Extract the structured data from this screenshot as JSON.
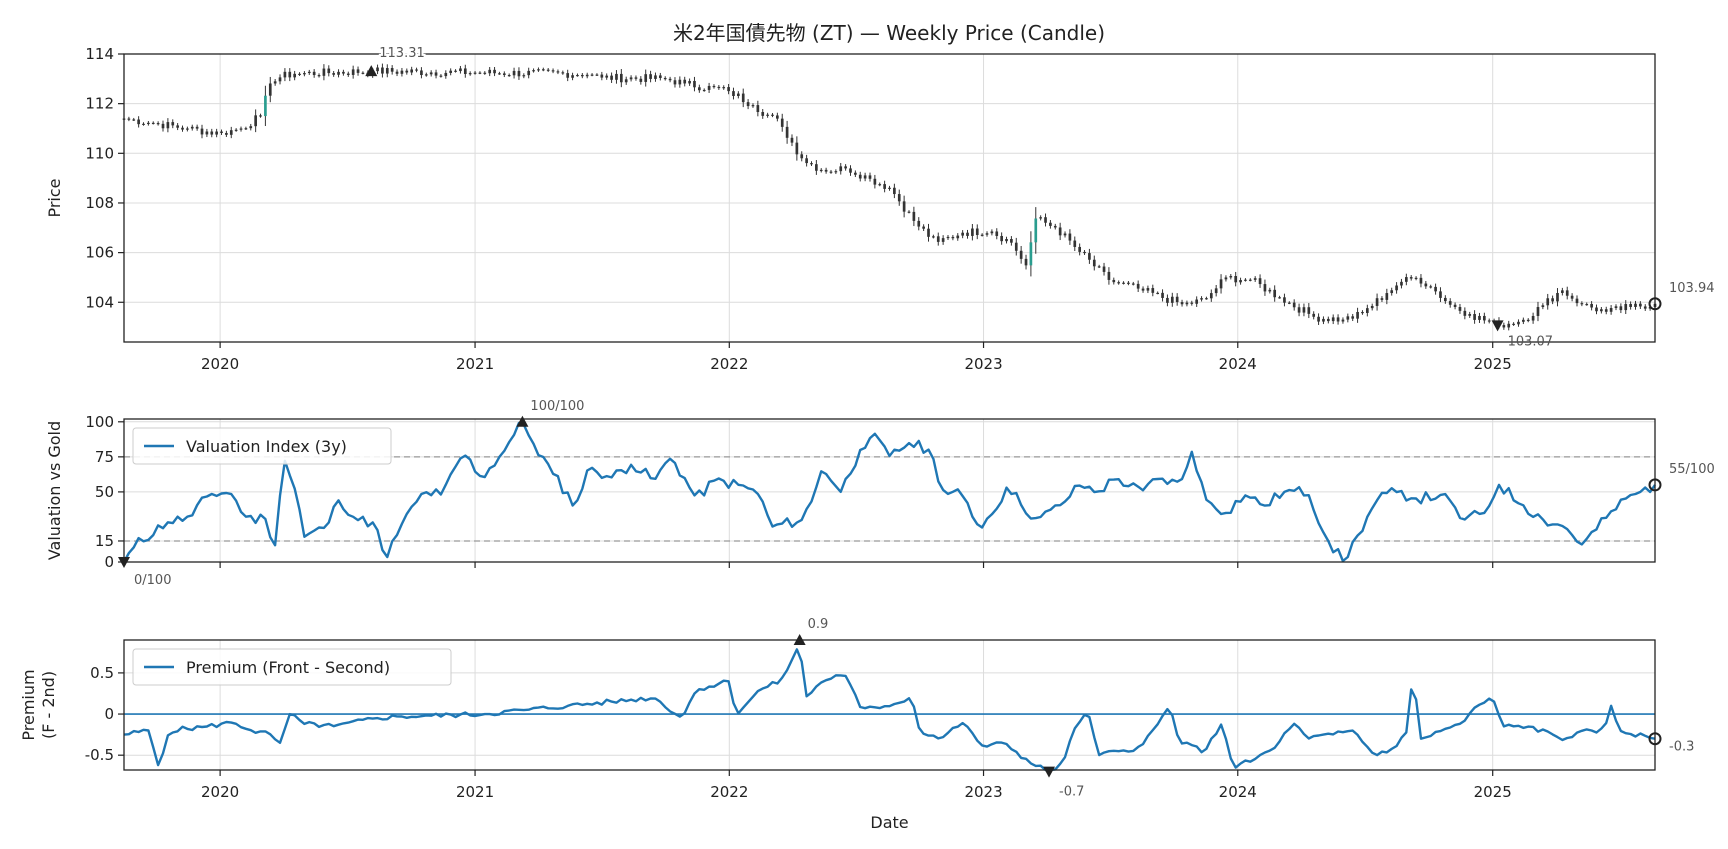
{
  "title": "米2年国債先物 (ZT) — Weekly Price (Candle)",
  "colors": {
    "up": "#2a9d8f",
    "down": "#c0392b",
    "body": "#333333",
    "line": "#1f77b4",
    "marker": "#222222",
    "grid": "#dcdcdc",
    "dash": "#999999"
  },
  "chart_data": [
    {
      "type": "candlestick",
      "ylabel": "Price",
      "ylim": [
        102.4,
        114.0
      ],
      "yticks": [
        104,
        106,
        108,
        110,
        112,
        114
      ],
      "xrange": [
        "2019-08-16",
        "2025-08-22"
      ],
      "xtick_labels": [
        "2020",
        "2021",
        "2022",
        "2023",
        "2024",
        "2025"
      ],
      "grid": true,
      "anchors": [
        [
          "2019-08-16",
          111.4
        ],
        [
          "2019-10-01",
          111.2
        ],
        [
          "2019-11-15",
          111.0
        ],
        [
          "2019-12-31",
          110.8
        ],
        [
          "2020-01-31",
          111.0
        ],
        [
          "2020-02-28",
          111.5
        ],
        [
          "2020-03-15",
          113.0
        ],
        [
          "2020-04-15",
          113.2
        ],
        [
          "2020-08-05",
          113.31
        ],
        [
          "2021-01-01",
          113.25
        ],
        [
          "2021-06-15",
          113.2
        ],
        [
          "2021-07-01",
          113.05
        ],
        [
          "2021-10-01",
          113.0
        ],
        [
          "2021-10-31",
          112.8
        ],
        [
          "2022-01-01",
          112.5
        ],
        [
          "2022-02-01",
          112.0
        ],
        [
          "2022-03-15",
          111.2
        ],
        [
          "2022-04-15",
          109.8
        ],
        [
          "2022-05-15",
          109.3
        ],
        [
          "2022-06-20",
          109.4
        ],
        [
          "2022-07-20",
          109.0
        ],
        [
          "2022-08-20",
          108.6
        ],
        [
          "2022-09-25",
          107.2
        ],
        [
          "2022-10-25",
          106.4
        ],
        [
          "2022-12-01",
          106.8
        ],
        [
          "2023-01-10",
          106.9
        ],
        [
          "2023-02-10",
          106.4
        ],
        [
          "2023-03-05",
          105.4
        ],
        [
          "2023-03-15",
          107.4
        ],
        [
          "2023-04-15",
          107.0
        ],
        [
          "2023-05-20",
          106.0
        ],
        [
          "2023-06-30",
          104.9
        ],
        [
          "2023-08-15",
          104.5
        ],
        [
          "2023-10-15",
          103.9
        ],
        [
          "2023-11-15",
          104.1
        ],
        [
          "2023-12-15",
          105.0
        ],
        [
          "2024-01-20",
          104.9
        ],
        [
          "2024-03-01",
          104.2
        ],
        [
          "2024-04-20",
          103.4
        ],
        [
          "2024-06-01",
          103.3
        ],
        [
          "2024-06-25",
          103.5
        ],
        [
          "2024-07-30",
          104.3
        ],
        [
          "2024-08-20",
          104.8
        ],
        [
          "2024-09-15",
          105.0
        ],
        [
          "2024-10-05",
          104.6
        ],
        [
          "2024-11-01",
          103.9
        ],
        [
          "2024-12-01",
          103.5
        ],
        [
          "2025-01-08",
          103.07
        ],
        [
          "2025-02-15",
          103.3
        ],
        [
          "2025-03-15",
          103.9
        ],
        [
          "2025-04-10",
          104.5
        ],
        [
          "2025-05-10",
          103.9
        ],
        [
          "2025-06-15",
          103.6
        ],
        [
          "2025-07-15",
          103.8
        ],
        [
          "2025-08-22",
          103.94
        ]
      ],
      "annotations": [
        {
          "date": "2020-08-05",
          "value": 113.31,
          "label": "113.31",
          "kind": "max"
        },
        {
          "date": "2025-01-08",
          "value": 103.07,
          "label": "103.07",
          "kind": "min"
        },
        {
          "date": "2025-08-22",
          "value": 103.94,
          "label": "103.94",
          "kind": "last"
        }
      ]
    },
    {
      "type": "line",
      "ylabel": "Valuation vs Gold",
      "ylim": [
        0,
        102
      ],
      "yticks": [
        0,
        15,
        50,
        75,
        100
      ],
      "hlines": [
        15,
        75
      ],
      "grid": true,
      "series": [
        {
          "name": "Valuation Index (3y)"
        }
      ],
      "legend": "top-left",
      "anchors": [
        [
          "2019-08-16",
          0
        ],
        [
          "2019-09-01",
          12
        ],
        [
          "2019-10-15",
          28
        ],
        [
          "2019-11-20",
          32
        ],
        [
          "2019-12-15",
          48
        ],
        [
          "2020-01-15",
          50
        ],
        [
          "2020-02-10",
          30
        ],
        [
          "2020-03-05",
          32
        ],
        [
          "2020-03-20",
          12
        ],
        [
          "2020-04-01",
          75
        ],
        [
          "2020-04-20",
          48
        ],
        [
          "2020-05-01",
          18
        ],
        [
          "2020-06-01",
          25
        ],
        [
          "2020-06-20",
          45
        ],
        [
          "2020-07-15",
          30
        ],
        [
          "2020-08-10",
          28
        ],
        [
          "2020-08-25",
          0
        ],
        [
          "2020-09-15",
          25
        ],
        [
          "2020-10-20",
          50
        ],
        [
          "2020-11-15",
          48
        ],
        [
          "2020-12-15",
          78
        ],
        [
          "2021-01-10",
          60
        ],
        [
          "2021-02-05",
          75
        ],
        [
          "2021-03-01",
          93
        ],
        [
          "2021-03-10",
          100
        ],
        [
          "2021-03-25",
          85
        ],
        [
          "2021-04-20",
          65
        ],
        [
          "2021-05-25",
          40
        ],
        [
          "2021-06-15",
          68
        ],
        [
          "2021-07-15",
          60
        ],
        [
          "2021-08-15",
          70
        ],
        [
          "2021-09-15",
          58
        ],
        [
          "2021-10-10",
          75
        ],
        [
          "2021-11-15",
          45
        ],
        [
          "2021-12-10",
          58
        ],
        [
          "2022-01-15",
          55
        ],
        [
          "2022-02-15",
          48
        ],
        [
          "2022-03-01",
          25
        ],
        [
          "2022-04-15",
          30
        ],
        [
          "2022-05-01",
          45
        ],
        [
          "2022-05-15",
          68
        ],
        [
          "2022-06-10",
          50
        ],
        [
          "2022-07-10",
          82
        ],
        [
          "2022-07-25",
          90
        ],
        [
          "2022-08-20",
          75
        ],
        [
          "2022-09-15",
          85
        ],
        [
          "2022-10-15",
          80
        ],
        [
          "2022-11-05",
          50
        ],
        [
          "2022-12-01",
          48
        ],
        [
          "2022-12-25",
          25
        ],
        [
          "2023-01-15",
          35
        ],
        [
          "2023-02-05",
          55
        ],
        [
          "2023-02-25",
          40
        ],
        [
          "2023-03-20",
          30
        ],
        [
          "2023-04-20",
          40
        ],
        [
          "2023-05-20",
          55
        ],
        [
          "2023-06-15",
          50
        ],
        [
          "2023-07-10",
          60
        ],
        [
          "2023-08-15",
          50
        ],
        [
          "2023-09-10",
          60
        ],
        [
          "2023-10-10",
          55
        ],
        [
          "2023-10-28",
          80
        ],
        [
          "2023-11-15",
          45
        ],
        [
          "2023-12-15",
          35
        ],
        [
          "2024-01-10",
          48
        ],
        [
          "2024-02-10",
          40
        ],
        [
          "2024-03-05",
          50
        ],
        [
          "2024-04-10",
          50
        ],
        [
          "2024-05-10",
          15
        ],
        [
          "2024-06-01",
          0
        ],
        [
          "2024-06-20",
          18
        ],
        [
          "2024-07-20",
          45
        ],
        [
          "2024-08-15",
          50
        ],
        [
          "2024-09-15",
          45
        ],
        [
          "2024-10-20",
          48
        ],
        [
          "2024-11-20",
          30
        ],
        [
          "2024-12-20",
          35
        ],
        [
          "2025-01-10",
          55
        ],
        [
          "2025-02-15",
          40
        ],
        [
          "2025-03-15",
          30
        ],
        [
          "2025-04-15",
          25
        ],
        [
          "2025-05-10",
          12
        ],
        [
          "2025-06-10",
          30
        ],
        [
          "2025-07-10",
          45
        ],
        [
          "2025-08-01",
          50
        ],
        [
          "2025-08-22",
          55
        ]
      ],
      "annotations": [
        {
          "date": "2019-08-16",
          "value": 0,
          "label": "0/100",
          "kind": "min"
        },
        {
          "date": "2021-03-10",
          "value": 100,
          "label": "100/100",
          "kind": "max"
        },
        {
          "date": "2025-08-22",
          "value": 55,
          "label": "55/100",
          "kind": "last"
        }
      ]
    },
    {
      "type": "line",
      "xlabel": "Date",
      "ylabel": "Premium\n(F - 2nd)",
      "ylim": [
        -0.68,
        0.9
      ],
      "yticks": [
        -0.5,
        0.0,
        0.5
      ],
      "hlines": [
        0
      ],
      "grid": true,
      "series": [
        {
          "name": "Premium (Front - Second)"
        }
      ],
      "legend": "top-left",
      "anchors": [
        [
          "2019-08-16",
          -0.25
        ],
        [
          "2019-09-20",
          -0.2
        ],
        [
          "2019-10-05",
          -0.65
        ],
        [
          "2019-10-20",
          -0.2
        ],
        [
          "2019-12-15",
          -0.15
        ],
        [
          "2020-01-20",
          -0.1
        ],
        [
          "2020-02-15",
          -0.2
        ],
        [
          "2020-03-15",
          -0.25
        ],
        [
          "2020-03-25",
          -0.4
        ],
        [
          "2020-04-10",
          0.0
        ],
        [
          "2020-05-01",
          -0.12
        ],
        [
          "2020-06-15",
          -0.15
        ],
        [
          "2020-08-10",
          -0.05
        ],
        [
          "2020-09-15",
          -0.03
        ],
        [
          "2020-11-01",
          -0.02
        ],
        [
          "2021-01-15",
          0.0
        ],
        [
          "2021-03-15",
          0.05
        ],
        [
          "2021-05-15",
          0.1
        ],
        [
          "2021-07-15",
          0.15
        ],
        [
          "2021-09-15",
          0.2
        ],
        [
          "2021-10-25",
          -0.05
        ],
        [
          "2021-11-15",
          0.3
        ],
        [
          "2022-01-01",
          0.4
        ],
        [
          "2022-01-10",
          0.0
        ],
        [
          "2022-02-15",
          0.3
        ],
        [
          "2022-03-15",
          0.4
        ],
        [
          "2022-04-05",
          0.7
        ],
        [
          "2022-04-12",
          0.9
        ],
        [
          "2022-04-20",
          0.2
        ],
        [
          "2022-05-15",
          0.4
        ],
        [
          "2022-06-15",
          0.5
        ],
        [
          "2022-07-10",
          0.05
        ],
        [
          "2022-08-15",
          0.1
        ],
        [
          "2022-09-20",
          0.2
        ],
        [
          "2022-10-01",
          -0.2
        ],
        [
          "2022-11-01",
          -0.3
        ],
        [
          "2022-12-01",
          -0.1
        ],
        [
          "2023-01-01",
          -0.4
        ],
        [
          "2023-02-01",
          -0.35
        ],
        [
          "2023-03-10",
          -0.6
        ],
        [
          "2023-04-05",
          -0.7
        ],
        [
          "2023-04-25",
          -0.6
        ],
        [
          "2023-05-15",
          -0.1
        ],
        [
          "2023-06-01",
          0.0
        ],
        [
          "2023-06-15",
          -0.5
        ],
        [
          "2023-07-15",
          -0.45
        ],
        [
          "2023-08-15",
          -0.4
        ],
        [
          "2023-09-10",
          -0.1
        ],
        [
          "2023-09-25",
          0.1
        ],
        [
          "2023-10-10",
          -0.35
        ],
        [
          "2023-11-15",
          -0.45
        ],
        [
          "2023-12-10",
          -0.1
        ],
        [
          "2023-12-25",
          -0.65
        ],
        [
          "2024-01-25",
          -0.55
        ],
        [
          "2024-02-25",
          -0.4
        ],
        [
          "2024-03-20",
          -0.1
        ],
        [
          "2024-04-10",
          -0.3
        ],
        [
          "2024-05-15",
          -0.25
        ],
        [
          "2024-06-15",
          -0.2
        ],
        [
          "2024-07-15",
          -0.5
        ],
        [
          "2024-08-15",
          -0.4
        ],
        [
          "2024-09-01",
          -0.2
        ],
        [
          "2024-09-08",
          0.5
        ],
        [
          "2024-09-20",
          -0.3
        ],
        [
          "2024-10-20",
          -0.2
        ],
        [
          "2024-11-20",
          -0.1
        ],
        [
          "2024-12-10",
          0.1
        ],
        [
          "2025-01-01",
          0.2
        ],
        [
          "2025-01-15",
          -0.15
        ],
        [
          "2025-02-20",
          -0.15
        ],
        [
          "2025-04-15",
          -0.3
        ],
        [
          "2025-05-20",
          -0.2
        ],
        [
          "2025-06-10",
          -0.2
        ],
        [
          "2025-06-20",
          0.1
        ],
        [
          "2025-07-01",
          -0.2
        ],
        [
          "2025-08-22",
          -0.3
        ]
      ],
      "annotations": [
        {
          "date": "2022-04-12",
          "value": 0.9,
          "label": "0.9",
          "kind": "max"
        },
        {
          "date": "2023-04-05",
          "value": -0.7,
          "label": "-0.7",
          "kind": "min"
        },
        {
          "date": "2025-08-22",
          "value": -0.3,
          "label": "-0.3",
          "kind": "last"
        }
      ]
    }
  ]
}
